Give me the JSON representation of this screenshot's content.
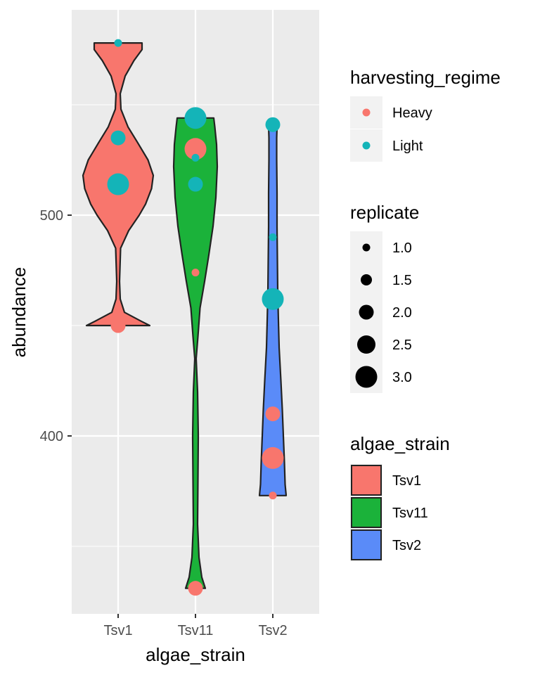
{
  "chart_data": {
    "type": "violin",
    "xlabel": "algae_strain",
    "ylabel": "abundance",
    "categories": [
      "Tsv1",
      "Tsv11",
      "Tsv2"
    ],
    "y_ticks": [
      400,
      500
    ],
    "ylim": [
      321,
      579
    ],
    "grid": true,
    "fill_colors": {
      "Tsv1": "#F8766D",
      "Tsv11": "#1BB23A",
      "Tsv2": "#5A8BF8"
    },
    "regime_colors": {
      "Heavy": "#F8766D",
      "Light": "#14B4B8"
    },
    "violins": [
      {
        "category": "Tsv1",
        "min": 450,
        "max": 578,
        "profile": [
          [
            450,
            0.9
          ],
          [
            452,
            0.65
          ],
          [
            456,
            0.18
          ],
          [
            462,
            0.06
          ],
          [
            470,
            0.04
          ],
          [
            485,
            0.07
          ],
          [
            493,
            0.3
          ],
          [
            500,
            0.6
          ],
          [
            505,
            0.78
          ],
          [
            512,
            0.95
          ],
          [
            518,
            1.0
          ],
          [
            525,
            0.85
          ],
          [
            533,
            0.55
          ],
          [
            540,
            0.28
          ],
          [
            548,
            0.08
          ],
          [
            555,
            0.06
          ],
          [
            563,
            0.2
          ],
          [
            570,
            0.45
          ],
          [
            575,
            0.68
          ],
          [
            578,
            0.68
          ]
        ]
      },
      {
        "category": "Tsv11",
        "min": 331,
        "max": 544,
        "profile": [
          [
            331,
            0.28
          ],
          [
            336,
            0.18
          ],
          [
            345,
            0.1
          ],
          [
            360,
            0.06
          ],
          [
            380,
            0.07
          ],
          [
            400,
            0.08
          ],
          [
            420,
            0.06
          ],
          [
            435,
            0.02
          ],
          [
            445,
            0.07
          ],
          [
            458,
            0.13
          ],
          [
            470,
            0.26
          ],
          [
            482,
            0.38
          ],
          [
            495,
            0.5
          ],
          [
            508,
            0.58
          ],
          [
            522,
            0.62
          ],
          [
            532,
            0.6
          ],
          [
            540,
            0.55
          ],
          [
            544,
            0.52
          ]
        ]
      },
      {
        "category": "Tsv2",
        "min": 373,
        "max": 540,
        "profile": [
          [
            373,
            0.38
          ],
          [
            378,
            0.35
          ],
          [
            388,
            0.33
          ],
          [
            400,
            0.3
          ],
          [
            412,
            0.27
          ],
          [
            425,
            0.23
          ],
          [
            440,
            0.18
          ],
          [
            452,
            0.16
          ],
          [
            465,
            0.14
          ],
          [
            480,
            0.13
          ],
          [
            495,
            0.12
          ],
          [
            510,
            0.12
          ],
          [
            525,
            0.11
          ],
          [
            535,
            0.11
          ],
          [
            540,
            0.12
          ]
        ]
      }
    ],
    "points": [
      {
        "category": "Tsv1",
        "abundance": 578,
        "harvesting_regime": "Light",
        "replicate": 1
      },
      {
        "category": "Tsv1",
        "abundance": 535,
        "harvesting_regime": "Light",
        "replicate": 2
      },
      {
        "category": "Tsv1",
        "abundance": 514,
        "harvesting_regime": "Light",
        "replicate": 3
      },
      {
        "category": "Tsv1",
        "abundance": 450,
        "harvesting_regime": "Heavy",
        "replicate": 2
      },
      {
        "category": "Tsv11",
        "abundance": 544,
        "harvesting_regime": "Light",
        "replicate": 3
      },
      {
        "category": "Tsv11",
        "abundance": 530,
        "harvesting_regime": "Heavy",
        "replicate": 3
      },
      {
        "category": "Tsv11",
        "abundance": 526,
        "harvesting_regime": "Light",
        "replicate": 1
      },
      {
        "category": "Tsv11",
        "abundance": 514,
        "harvesting_regime": "Light",
        "replicate": 2
      },
      {
        "category": "Tsv11",
        "abundance": 474,
        "harvesting_regime": "Heavy",
        "replicate": 1
      },
      {
        "category": "Tsv11",
        "abundance": 331,
        "harvesting_regime": "Heavy",
        "replicate": 2
      },
      {
        "category": "Tsv2",
        "abundance": 541,
        "harvesting_regime": "Light",
        "replicate": 2
      },
      {
        "category": "Tsv2",
        "abundance": 490,
        "harvesting_regime": "Light",
        "replicate": 1
      },
      {
        "category": "Tsv2",
        "abundance": 462,
        "harvesting_regime": "Light",
        "replicate": 3
      },
      {
        "category": "Tsv2",
        "abundance": 410,
        "harvesting_regime": "Heavy",
        "replicate": 2
      },
      {
        "category": "Tsv2",
        "abundance": 390,
        "harvesting_regime": "Heavy",
        "replicate": 3
      },
      {
        "category": "Tsv2",
        "abundance": 373,
        "harvesting_regime": "Heavy",
        "replicate": 1
      }
    ],
    "legend_placement": "right",
    "legends": {
      "harvesting_regime": {
        "title": "harvesting_regime",
        "entries": [
          "Heavy",
          "Light"
        ]
      },
      "replicate": {
        "title": "replicate",
        "entries": [
          "1.0",
          "1.5",
          "2.0",
          "2.5",
          "3.0"
        ],
        "values": [
          1.0,
          1.5,
          2.0,
          2.5,
          3.0
        ]
      },
      "algae_strain": {
        "title": "algae_strain",
        "entries": [
          "Tsv1",
          "Tsv11",
          "Tsv2"
        ]
      }
    }
  }
}
